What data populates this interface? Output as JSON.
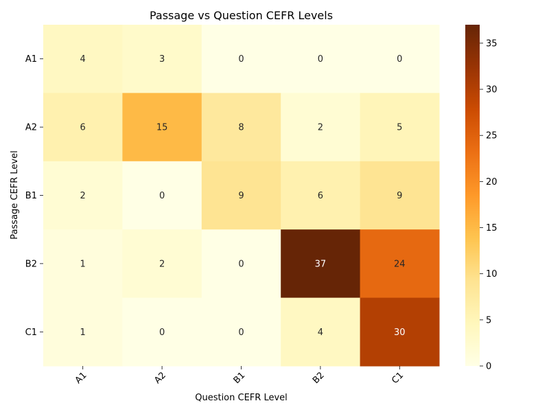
{
  "chart_data": {
    "type": "heatmap",
    "title": "Passage vs Question CEFR Levels",
    "xlabel": "Question CEFR Level",
    "ylabel": "Passage CEFR Level",
    "x_categories": [
      "A1",
      "A2",
      "B1",
      "B2",
      "C1"
    ],
    "y_categories": [
      "A1",
      "A2",
      "B1",
      "B2",
      "C1"
    ],
    "values": [
      [
        4,
        3,
        0,
        0,
        0
      ],
      [
        6,
        15,
        8,
        2,
        5
      ],
      [
        2,
        0,
        9,
        6,
        9
      ],
      [
        1,
        2,
        0,
        37,
        24
      ],
      [
        1,
        0,
        0,
        4,
        30
      ]
    ],
    "colorbar": {
      "min": 0,
      "max": 37,
      "ticks": [
        "0",
        "5",
        "10",
        "15",
        "20",
        "25",
        "30",
        "35"
      ],
      "colormap": "YlOrBr",
      "colors": [
        "#ffffe5",
        "#fff7bc",
        "#fee391",
        "#fec44f",
        "#fe9929",
        "#ec7014",
        "#cc4c02",
        "#993404",
        "#662506"
      ]
    },
    "grid": false,
    "x_tick_rotation_deg": 45
  }
}
